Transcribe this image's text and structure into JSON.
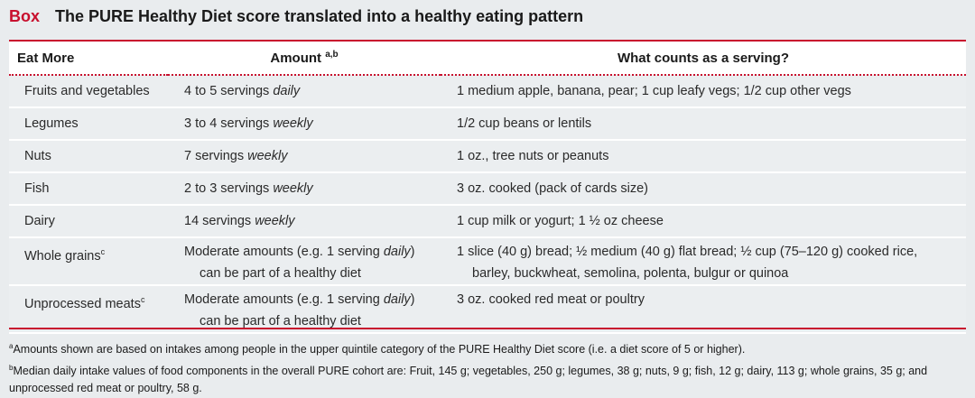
{
  "box": {
    "label": "Box",
    "title": "The PURE Healthy Diet score translated into a healthy eating pattern"
  },
  "table": {
    "headers": {
      "eat_more": "Eat More",
      "amount": "Amount",
      "amount_sup": "a,b",
      "serving": "What counts as a serving?"
    },
    "rows": [
      {
        "food": "Fruits and vegetables",
        "food_sup": "",
        "amount_pre": "4 to 5 servings ",
        "amount_em": "daily",
        "amount_post": "",
        "amount_line2": "",
        "serving": "1 medium apple, banana, pear; 1 cup leafy vegs; 1/2 cup other vegs",
        "serving_line2": ""
      },
      {
        "food": "Legumes",
        "food_sup": "",
        "amount_pre": "3 to 4 servings ",
        "amount_em": "weekly",
        "amount_post": "",
        "amount_line2": "",
        "serving": "1/2 cup beans or lentils",
        "serving_line2": ""
      },
      {
        "food": "Nuts",
        "food_sup": "",
        "amount_pre": "7 servings ",
        "amount_em": "weekly",
        "amount_post": "",
        "amount_line2": "",
        "serving": "1 oz., tree nuts or peanuts",
        "serving_line2": ""
      },
      {
        "food": "Fish",
        "food_sup": "",
        "amount_pre": "2 to 3 servings ",
        "amount_em": "weekly",
        "amount_post": "",
        "amount_line2": "",
        "serving": "3 oz. cooked (pack of cards size)",
        "serving_line2": ""
      },
      {
        "food": "Dairy",
        "food_sup": "",
        "amount_pre": "14 servings ",
        "amount_em": "weekly",
        "amount_post": "",
        "amount_line2": "",
        "serving": "1 cup milk or yogurt; 1 ½ oz cheese",
        "serving_line2": ""
      },
      {
        "food": "Whole grains",
        "food_sup": "c",
        "amount_pre": "Moderate amounts (e.g. 1 serving ",
        "amount_em": "daily",
        "amount_post": ")",
        "amount_line2": "can be part of a healthy diet",
        "serving": "1 slice (40 g) bread; ½ medium (40 g) flat bread; ½ cup (75–120 g) cooked rice,",
        "serving_line2": "barley, buckwheat, semolina, polenta, bulgur or quinoa"
      },
      {
        "food": "Unprocessed meats",
        "food_sup": "c",
        "amount_pre": "Moderate amounts (e.g. 1 serving ",
        "amount_em": "daily",
        "amount_post": ")",
        "amount_line2": "can be part of a healthy diet",
        "serving": "3 oz. cooked red meat or poultry",
        "serving_line2": ""
      }
    ]
  },
  "footnotes": {
    "a_sup": "a",
    "a": "Amounts shown are based on intakes among people in the upper quintile category of the PURE Healthy Diet score (i.e. a diet score of 5 or higher).",
    "b_sup": "b",
    "b": "Median daily intake values of food components in the overall PURE cohort are: Fruit, 145 g; vegetables, 250 g; legumes, 38 g; nuts, 9 g; fish, 12 g; dairy, 113 g; whole grains, 35 g; and unprocessed red meat or poultry, 58 g."
  },
  "colors": {
    "accent": "#c8102e",
    "row_fill": "#ebeef0",
    "page_bg": "#e9ecee"
  }
}
